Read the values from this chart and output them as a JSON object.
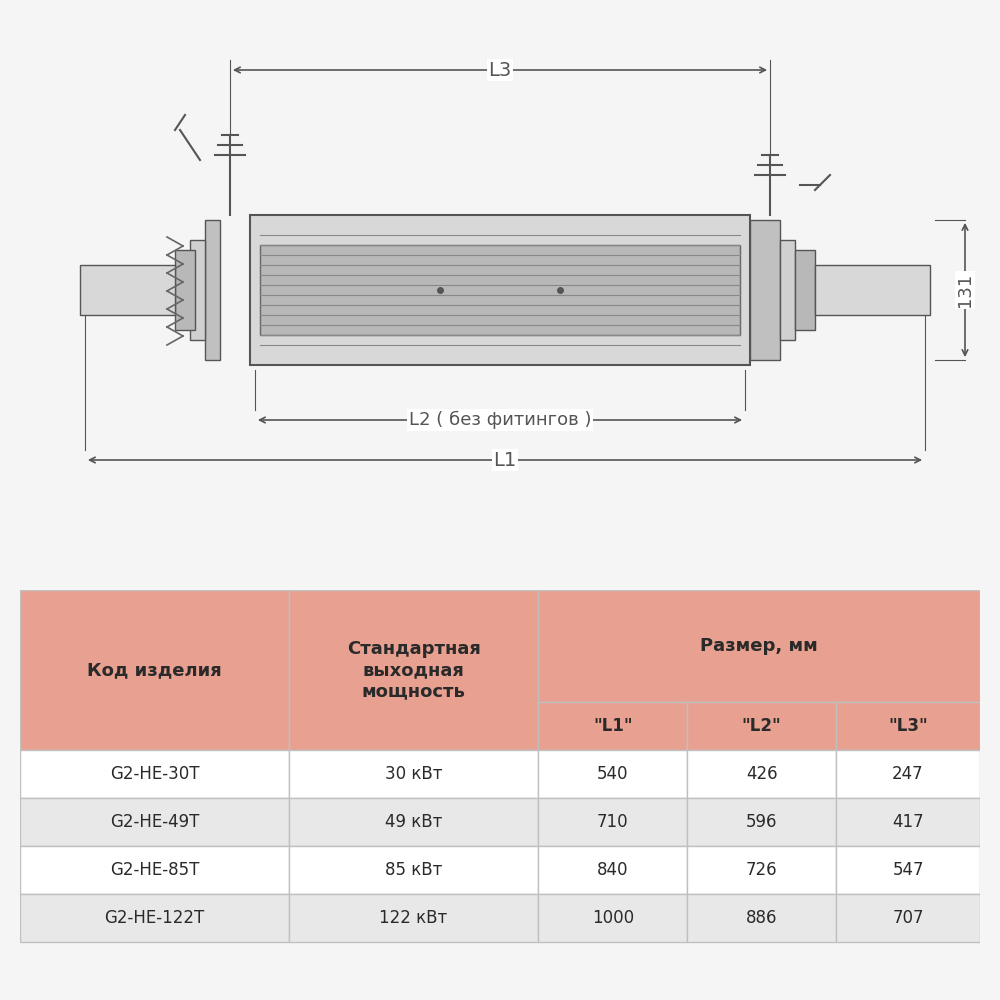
{
  "bg_color": "#f5f5f5",
  "drawing_bg": "#ffffff",
  "table_header_color": "#e8a090",
  "table_subheader_color": "#e8a090",
  "table_row_odd": "#ffffff",
  "table_row_even": "#e8e8e8",
  "table_border_color": "#c0c0c0",
  "text_color": "#2a2a2a",
  "dim_color": "#555555",
  "col_headers": [
    "Код изделия",
    "Стандартная\nвыходная\nмощность",
    "Размер, мм"
  ],
  "sub_headers": [
    "\"L1\"",
    "\"L2\"",
    "\"L3\""
  ],
  "rows": [
    [
      "G2-HE-30T",
      "30 кВт",
      "540",
      "426",
      "247"
    ],
    [
      "G2-HE-49T",
      "49 кВт",
      "710",
      "596",
      "417"
    ],
    [
      "G2-HE-85T",
      "85 кВт",
      "840",
      "726",
      "547"
    ],
    [
      "G2-HE-122T",
      "122 кВт",
      "1000",
      "886",
      "707"
    ]
  ],
  "dim_label_131": "131",
  "dim_label_L1": "L1",
  "dim_label_L2": "L2 ( без фитингов )",
  "dim_label_L3": "L3"
}
